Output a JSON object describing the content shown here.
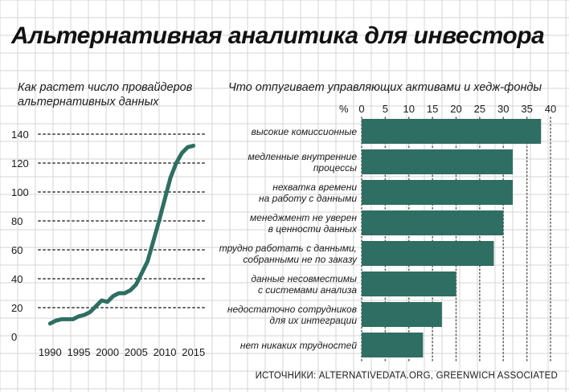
{
  "header": {
    "title": "Альтернативная аналитика для инвестора",
    "source": "ИСТОЧНИКИ: ALTERNATIVEDATA.ORG, GREENWICH ASSOCIATED"
  },
  "colors": {
    "accent": "#2f6e62",
    "grid": "#d4d4d4",
    "dots": "#666666"
  },
  "chart_data": [
    {
      "type": "line",
      "title": "Как растет число провайдеров альтернативных данных",
      "xlabel": "",
      "ylabel": "",
      "xlim": [
        1988,
        2017
      ],
      "ylim": [
        0,
        140
      ],
      "x_ticks": [
        1990,
        1995,
        2000,
        2005,
        2010,
        2015
      ],
      "y_ticks": [
        0,
        20,
        40,
        60,
        80,
        100,
        120,
        140
      ],
      "grid": "horizontal-dotted",
      "series": [
        {
          "x": [
            1990,
            1991,
            1992,
            1993,
            1994,
            1995,
            1996,
            1997,
            1998,
            1999,
            2000,
            2001,
            2002,
            2003,
            2004,
            2005,
            2006,
            2007,
            2008,
            2009,
            2010,
            2011,
            2012,
            2013,
            2014,
            2015
          ],
          "values": [
            9,
            11,
            12,
            12,
            12,
            14,
            15,
            17,
            21,
            25,
            24,
            28,
            30,
            30,
            32,
            36,
            44,
            52,
            66,
            80,
            95,
            110,
            120,
            127,
            131,
            132
          ]
        }
      ]
    },
    {
      "type": "bar",
      "orientation": "horizontal",
      "title": "Что отпугивает управляющих активами и хедж-фонды",
      "xlabel": "%",
      "xlim": [
        0,
        40
      ],
      "x_ticks": [
        0,
        5,
        10,
        15,
        20,
        25,
        30,
        35,
        40
      ],
      "grid": "vertical-dotted",
      "categories": [
        "высокие комиссионные",
        "медленные внутренние\nпроцессы",
        "нехватка времени\nна работу с данными",
        "менеджмент не уверен\nв ценности данных",
        "трудно работать с данными,\nсобранными не по заказу",
        "данные несовместимы\nс системами анализа",
        "недостаточно сотрудников\nдля их интеграции",
        "нет никаких трудностей"
      ],
      "values": [
        38,
        32,
        32,
        30,
        28,
        20,
        17,
        13
      ]
    }
  ]
}
